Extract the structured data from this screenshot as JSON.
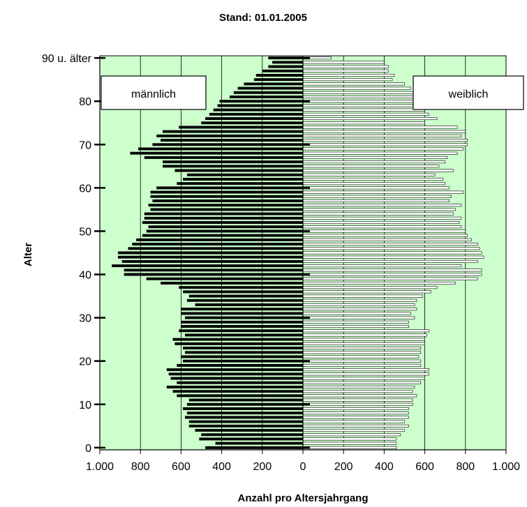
{
  "chart_data": {
    "type": "bar",
    "title": "Stand: 01.01.2005",
    "xlabel": "Anzahl pro Altersjahrgang",
    "ylabel": "Alter",
    "xlim": [
      -1000,
      1000
    ],
    "ylim": [
      0,
      90
    ],
    "x_tick_labels": [
      "1.000",
      "800",
      "600",
      "400",
      "200",
      "0",
      "200",
      "400",
      "600",
      "800",
      "1.000"
    ],
    "y_ticks": [
      {
        "value": 0,
        "label": "0"
      },
      {
        "value": 10,
        "label": "10"
      },
      {
        "value": 20,
        "label": "20"
      },
      {
        "value": 30,
        "label": "30"
      },
      {
        "value": 40,
        "label": "40"
      },
      {
        "value": 50,
        "label": "50"
      },
      {
        "value": 60,
        "label": "60"
      },
      {
        "value": 70,
        "label": "70"
      },
      {
        "value": 80,
        "label": "80"
      },
      {
        "value": 90,
        "label": "90 u. älter"
      }
    ],
    "legend_male": "männlich",
    "legend_female": "weiblich",
    "plot_background": "#ccffcc",
    "grid": "vertical",
    "ages": [
      0,
      1,
      2,
      3,
      4,
      5,
      6,
      7,
      8,
      9,
      10,
      11,
      12,
      13,
      14,
      15,
      16,
      17,
      18,
      19,
      20,
      21,
      22,
      23,
      24,
      25,
      26,
      27,
      28,
      29,
      30,
      31,
      32,
      33,
      34,
      35,
      36,
      37,
      38,
      39,
      40,
      41,
      42,
      43,
      44,
      45,
      46,
      47,
      48,
      49,
      50,
      51,
      52,
      53,
      54,
      55,
      56,
      57,
      58,
      59,
      60,
      61,
      62,
      63,
      64,
      65,
      66,
      67,
      68,
      69,
      70,
      71,
      72,
      73,
      74,
      75,
      76,
      77,
      78,
      79,
      80,
      81,
      82,
      83,
      84,
      85,
      86,
      87,
      88,
      89,
      90
    ],
    "series": [
      {
        "name": "männlich",
        "color": "#000000",
        "values": [
          480,
          430,
          510,
          500,
          530,
          560,
          560,
          580,
          570,
          590,
          570,
          560,
          620,
          640,
          670,
          620,
          650,
          660,
          670,
          620,
          590,
          600,
          580,
          590,
          630,
          640,
          580,
          610,
          600,
          600,
          580,
          600,
          600,
          530,
          570,
          560,
          590,
          610,
          700,
          770,
          880,
          880,
          940,
          890,
          910,
          910,
          860,
          840,
          820,
          790,
          770,
          760,
          790,
          780,
          780,
          750,
          760,
          740,
          750,
          750,
          720,
          620,
          590,
          570,
          630,
          690,
          690,
          780,
          850,
          810,
          740,
          700,
          720,
          690,
          610,
          500,
          480,
          460,
          440,
          420,
          410,
          360,
          340,
          320,
          290,
          240,
          230,
          200,
          170,
          150,
          170
        ]
      },
      {
        "name": "weiblich",
        "color": "#ffffff",
        "values": [
          460,
          460,
          460,
          480,
          500,
          520,
          500,
          520,
          520,
          520,
          540,
          540,
          560,
          540,
          550,
          580,
          600,
          620,
          620,
          580,
          580,
          570,
          580,
          580,
          600,
          600,
          610,
          620,
          520,
          520,
          550,
          530,
          560,
          550,
          560,
          590,
          630,
          660,
          750,
          860,
          880,
          880,
          780,
          860,
          890,
          880,
          870,
          860,
          830,
          810,
          800,
          780,
          770,
          780,
          740,
          750,
          780,
          720,
          730,
          790,
          720,
          700,
          690,
          650,
          740,
          670,
          700,
          710,
          760,
          790,
          810,
          810,
          780,
          800,
          760,
          600,
          660,
          620,
          600,
          610,
          590,
          570,
          560,
          530,
          500,
          440,
          450,
          420,
          420,
          400,
          140
        ]
      }
    ]
  }
}
